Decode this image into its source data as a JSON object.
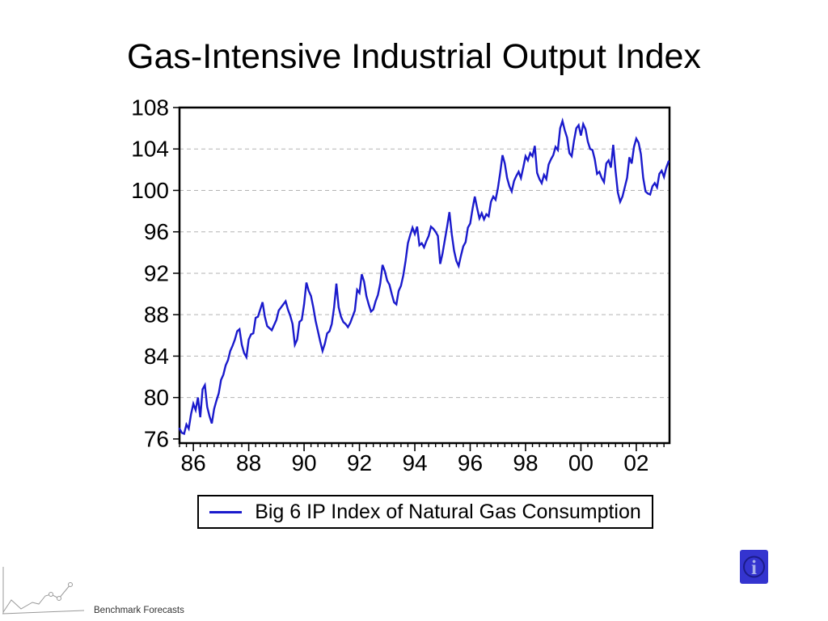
{
  "slide": {
    "title": "Gas-Intensive Industrial Output Index",
    "footer_brand": "Benchmark Forecasts"
  },
  "icons": {
    "info_glyph": "i"
  },
  "colors": {
    "line": "#1a1acc",
    "grid": "#b3b3b3",
    "frame": "#000000",
    "info_bg": "#3434cf",
    "info_ring": "#1c1c8a",
    "info_glyph": "#a9b1ea",
    "brand_gray": "#999999"
  },
  "chart_data": {
    "type": "line",
    "title": "Gas-Intensive Industrial Output Index",
    "xlabel": "",
    "ylabel": "",
    "legend_position": "bottom-box",
    "grid": "horizontal-dashed",
    "ylim": [
      75.6,
      108
    ],
    "yticks": [
      76,
      80,
      84,
      88,
      92,
      96,
      100,
      104,
      108
    ],
    "gridline_values": [
      104,
      100,
      96,
      92,
      88,
      84,
      80
    ],
    "xlim": [
      1985.5,
      2003.2
    ],
    "xticks": [
      {
        "v": 1986,
        "label": "86"
      },
      {
        "v": 1988,
        "label": "88"
      },
      {
        "v": 1990,
        "label": "90"
      },
      {
        "v": 1992,
        "label": "92"
      },
      {
        "v": 1994,
        "label": "94"
      },
      {
        "v": 1996,
        "label": "96"
      },
      {
        "v": 1998,
        "label": "98"
      },
      {
        "v": 2000,
        "label": "00"
      },
      {
        "v": 2002,
        "label": "02"
      }
    ],
    "minor_tick_step_years": 0.25,
    "series": [
      {
        "name": "Big 6 IP Index of Natural Gas Consumption",
        "start_time": 1985.5,
        "frequency": "monthly",
        "values": [
          77.0,
          76.6,
          76.5,
          77.4,
          77.0,
          78.4,
          79.4,
          78.8,
          80.0,
          78.1,
          80.8,
          81.2,
          79.1,
          78.2,
          77.5,
          78.9,
          79.7,
          80.4,
          81.7,
          82.2,
          83.1,
          83.6,
          84.5,
          85.0,
          85.6,
          86.4,
          86.6,
          85.1,
          84.3,
          83.9,
          85.6,
          86.1,
          86.2,
          87.7,
          87.8,
          88.5,
          89.2,
          87.8,
          86.9,
          86.7,
          86.5,
          87.0,
          87.5,
          88.4,
          88.7,
          89.0,
          89.3,
          88.5,
          87.9,
          87.1,
          85.1,
          85.6,
          87.3,
          87.5,
          89.0,
          91.1,
          90.3,
          89.8,
          88.7,
          87.4,
          86.4,
          85.4,
          84.5,
          85.2,
          86.2,
          86.4,
          87.1,
          88.7,
          91.0,
          88.7,
          87.8,
          87.3,
          87.1,
          86.8,
          87.2,
          87.8,
          88.4,
          90.4,
          90.1,
          91.9,
          91.2,
          89.8,
          89.0,
          88.3,
          88.5,
          89.3,
          89.9,
          91.0,
          92.8,
          92.2,
          91.3,
          90.9,
          90.0,
          89.2,
          89.0,
          90.3,
          90.8,
          91.8,
          93.2,
          94.9,
          95.7,
          96.4,
          95.8,
          96.5,
          94.7,
          94.9,
          94.5,
          95.1,
          95.6,
          96.5,
          96.3,
          96.0,
          95.6,
          92.9,
          93.9,
          95.2,
          96.5,
          97.9,
          95.8,
          94.2,
          93.2,
          92.7,
          93.7,
          94.6,
          95.0,
          96.4,
          96.8,
          98.2,
          99.4,
          98.3,
          97.3,
          97.8,
          97.2,
          97.7,
          97.5,
          98.9,
          99.4,
          99.1,
          100.2,
          101.7,
          103.4,
          102.6,
          101.2,
          100.4,
          99.9,
          100.9,
          101.4,
          101.8,
          101.2,
          102.2,
          103.3,
          102.9,
          103.6,
          103.3,
          104.3,
          101.7,
          101.1,
          100.7,
          101.5,
          101.1,
          102.5,
          103.0,
          103.4,
          104.2,
          103.9,
          106.0,
          106.7,
          105.8,
          105.1,
          103.6,
          103.3,
          104.8,
          106.0,
          106.3,
          105.3,
          106.4,
          105.9,
          104.7,
          104.0,
          103.9,
          103.0,
          101.6,
          101.8,
          101.2,
          100.8,
          102.6,
          102.9,
          102.2,
          104.4,
          101.9,
          99.8,
          98.9,
          99.4,
          100.3,
          101.2,
          103.2,
          102.6,
          104.2,
          105.0,
          104.6,
          103.5,
          101.2,
          99.9,
          99.7,
          99.6,
          100.4,
          100.7,
          100.3,
          101.6,
          101.9,
          101.3,
          102.2,
          102.8
        ]
      }
    ]
  }
}
